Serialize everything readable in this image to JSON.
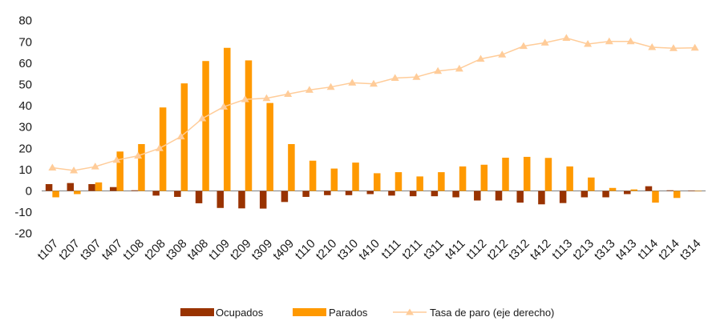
{
  "chart_data": {
    "type": "bar",
    "categories": [
      "t107",
      "t207",
      "t307",
      "t407",
      "t108",
      "t208",
      "t308",
      "t408",
      "t109",
      "t209",
      "t309",
      "t409",
      "t110",
      "t210",
      "t310",
      "t410",
      "t111",
      "t211",
      "t311",
      "t411",
      "t112",
      "t212",
      "t312",
      "t412",
      "t113",
      "t213",
      "t313",
      "t413",
      "t114",
      "t214",
      "t314"
    ],
    "ylim": [
      -20,
      80
    ],
    "yticks": [
      -20,
      -10,
      0,
      10,
      20,
      30,
      40,
      50,
      60,
      70,
      80
    ],
    "grid": false,
    "legend_position": "bottom",
    "series": [
      {
        "name": "Ocupados",
        "type": "bar",
        "color": "#993300",
        "values": [
          3.2,
          3.7,
          3.2,
          1.8,
          0.3,
          -2.2,
          -2.8,
          -5.8,
          -8.0,
          -8.2,
          -8.3,
          -5.2,
          -2.8,
          -2.0,
          -2.0,
          -1.5,
          -2.2,
          -2.5,
          -2.5,
          -3.0,
          -4.5,
          -4.5,
          -5.5,
          -6.3,
          -5.7,
          -3.0,
          -3.0,
          -1.5,
          2.2,
          0.3,
          0.2
        ]
      },
      {
        "name": "Parados",
        "type": "bar",
        "color": "#ff9900",
        "values": [
          -3.0,
          -1.5,
          4.0,
          18.5,
          22.0,
          39.2,
          50.5,
          61.0,
          67.2,
          61.3,
          41.3,
          22.0,
          14.2,
          10.5,
          13.3,
          8.3,
          8.8,
          6.8,
          8.8,
          11.5,
          12.3,
          15.6,
          16.0,
          15.5,
          11.5,
          6.3,
          1.4,
          0.7,
          -5.5,
          -3.3,
          0.0
        ]
      },
      {
        "name": "Tasa de paro (eje derecho)",
        "type": "line",
        "color": "#ffcc99",
        "values": [
          10.9,
          9.6,
          11.4,
          14.5,
          16.5,
          20.0,
          25.5,
          34.0,
          39.5,
          43.0,
          43.5,
          45.5,
          47.4,
          48.8,
          50.8,
          50.3,
          53.0,
          53.5,
          56.3,
          57.4,
          62.0,
          64.0,
          68.0,
          69.6,
          71.8,
          69.0,
          70.2,
          70.2,
          67.5,
          67.0,
          67.2
        ]
      }
    ]
  }
}
